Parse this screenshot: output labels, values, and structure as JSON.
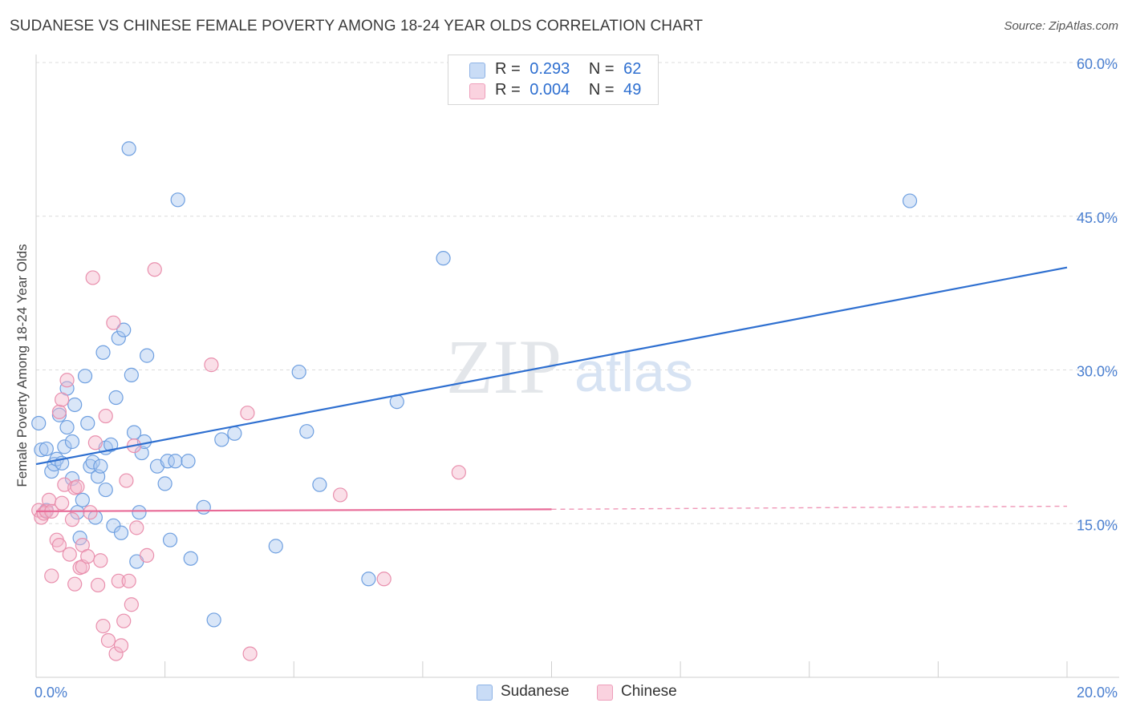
{
  "header": {
    "title": "SUDANESE VS CHINESE FEMALE POVERTY AMONG 18-24 YEAR OLDS CORRELATION CHART",
    "source": "Source: ZipAtlas.com"
  },
  "watermark": {
    "zip": "ZIP",
    "atlas": "atlas"
  },
  "legend": {
    "rows": [
      {
        "r_label": "R =",
        "r_value": "0.293",
        "n_label": "N =",
        "n_value": "62",
        "color": "#aac7f0"
      },
      {
        "r_label": "R =",
        "r_value": "0.004",
        "n_label": "N =",
        "n_value": "49",
        "color": "#f5b8cb"
      }
    ]
  },
  "chart_data": {
    "type": "scatter",
    "title": "SUDANESE VS CHINESE FEMALE POVERTY AMONG 18-24 YEAR OLDS CORRELATION CHART",
    "xlabel": "",
    "ylabel": "Female Poverty Among 18-24 Year Olds",
    "xlim": [
      0,
      20
    ],
    "ylim": [
      0,
      60
    ],
    "x_ticks": [
      {
        "value": 0,
        "label": "0.0%"
      },
      {
        "value": 20,
        "label": "20.0%"
      }
    ],
    "y_ticks": [
      {
        "value": 15,
        "label": "15.0%"
      },
      {
        "value": 30,
        "label": "30.0%"
      },
      {
        "value": 45,
        "label": "45.0%"
      },
      {
        "value": 60,
        "label": "60.0%"
      }
    ],
    "grid": true,
    "legend_position": "top-center",
    "series": [
      {
        "name": "Sudanese",
        "color": "#aac7f0",
        "stroke": "#6e9fe0",
        "trend": {
          "x": [
            0,
            20
          ],
          "y": [
            20.8,
            40.0
          ],
          "color": "#2e6fd0"
        },
        "points": [
          [
            0.05,
            24.8
          ],
          [
            0.1,
            22.2
          ],
          [
            0.2,
            22.3
          ],
          [
            0.3,
            20.1
          ],
          [
            0.35,
            20.8
          ],
          [
            0.4,
            21.3
          ],
          [
            0.45,
            25.6
          ],
          [
            0.5,
            20.9
          ],
          [
            0.55,
            22.5
          ],
          [
            0.6,
            24.4
          ],
          [
            0.6,
            28.2
          ],
          [
            0.7,
            19.4
          ],
          [
            0.7,
            23.0
          ],
          [
            0.75,
            26.6
          ],
          [
            0.8,
            16.1
          ],
          [
            0.85,
            13.6
          ],
          [
            0.9,
            17.3
          ],
          [
            0.95,
            29.4
          ],
          [
            1.0,
            24.8
          ],
          [
            1.05,
            20.6
          ],
          [
            1.1,
            21.0
          ],
          [
            1.15,
            15.6
          ],
          [
            1.2,
            19.6
          ],
          [
            1.25,
            20.6
          ],
          [
            1.3,
            31.7
          ],
          [
            1.35,
            18.3
          ],
          [
            1.35,
            22.4
          ],
          [
            1.45,
            22.7
          ],
          [
            1.5,
            14.8
          ],
          [
            1.55,
            27.3
          ],
          [
            1.6,
            33.1
          ],
          [
            1.65,
            14.1
          ],
          [
            1.7,
            33.9
          ],
          [
            1.8,
            51.6
          ],
          [
            1.85,
            29.5
          ],
          [
            1.9,
            23.9
          ],
          [
            1.95,
            11.3
          ],
          [
            2.0,
            16.1
          ],
          [
            2.05,
            21.9
          ],
          [
            2.1,
            23.0
          ],
          [
            2.15,
            31.4
          ],
          [
            2.35,
            20.6
          ],
          [
            2.5,
            18.9
          ],
          [
            2.55,
            21.1
          ],
          [
            2.6,
            13.4
          ],
          [
            2.7,
            21.1
          ],
          [
            2.75,
            46.6
          ],
          [
            2.95,
            21.1
          ],
          [
            3.0,
            11.6
          ],
          [
            3.25,
            16.6
          ],
          [
            3.45,
            5.6
          ],
          [
            3.6,
            23.2
          ],
          [
            3.85,
            23.8
          ],
          [
            4.65,
            12.8
          ],
          [
            5.1,
            29.8
          ],
          [
            5.25,
            24.0
          ],
          [
            5.5,
            18.8
          ],
          [
            6.45,
            9.6
          ],
          [
            7.0,
            26.9
          ],
          [
            7.9,
            40.9
          ],
          [
            16.95,
            46.5
          ],
          [
            0.2,
            16.3
          ]
        ]
      },
      {
        "name": "Chinese",
        "color": "#f5b8cb",
        "stroke": "#e98fad",
        "trend": {
          "x": [
            0,
            10
          ],
          "y": [
            16.2,
            16.4
          ],
          "dashed_to": [
            20,
            16.7
          ],
          "color": "#e86a97"
        },
        "points": [
          [
            0.05,
            16.3
          ],
          [
            0.1,
            15.6
          ],
          [
            0.15,
            16.0
          ],
          [
            0.2,
            16.2
          ],
          [
            0.25,
            17.3
          ],
          [
            0.3,
            9.9
          ],
          [
            0.3,
            16.2
          ],
          [
            0.4,
            13.4
          ],
          [
            0.45,
            12.9
          ],
          [
            0.45,
            25.9
          ],
          [
            0.5,
            17.0
          ],
          [
            0.5,
            27.1
          ],
          [
            0.55,
            18.8
          ],
          [
            0.6,
            29.0
          ],
          [
            0.65,
            12.0
          ],
          [
            0.7,
            15.4
          ],
          [
            0.75,
            9.1
          ],
          [
            0.75,
            18.5
          ],
          [
            0.8,
            18.6
          ],
          [
            0.85,
            10.7
          ],
          [
            0.9,
            10.8
          ],
          [
            0.9,
            12.9
          ],
          [
            1.0,
            11.8
          ],
          [
            1.05,
            16.1
          ],
          [
            1.1,
            39.0
          ],
          [
            1.15,
            22.9
          ],
          [
            1.2,
            9.0
          ],
          [
            1.25,
            11.4
          ],
          [
            1.3,
            5.0
          ],
          [
            1.35,
            25.5
          ],
          [
            1.4,
            3.6
          ],
          [
            1.5,
            34.6
          ],
          [
            1.55,
            2.3
          ],
          [
            1.6,
            9.4
          ],
          [
            1.65,
            3.1
          ],
          [
            1.7,
            5.5
          ],
          [
            1.75,
            19.2
          ],
          [
            1.8,
            9.4
          ],
          [
            1.85,
            7.1
          ],
          [
            1.9,
            22.6
          ],
          [
            1.95,
            14.6
          ],
          [
            2.15,
            11.9
          ],
          [
            2.3,
            39.8
          ],
          [
            3.4,
            30.5
          ],
          [
            4.1,
            25.8
          ],
          [
            4.15,
            2.3
          ],
          [
            5.9,
            17.8
          ],
          [
            6.75,
            9.6
          ],
          [
            8.2,
            20.0
          ]
        ]
      }
    ]
  },
  "bottom_legend": [
    {
      "label": "Sudanese",
      "color": "#aac7f0"
    },
    {
      "label": "Chinese",
      "color": "#f5b8cb"
    }
  ]
}
